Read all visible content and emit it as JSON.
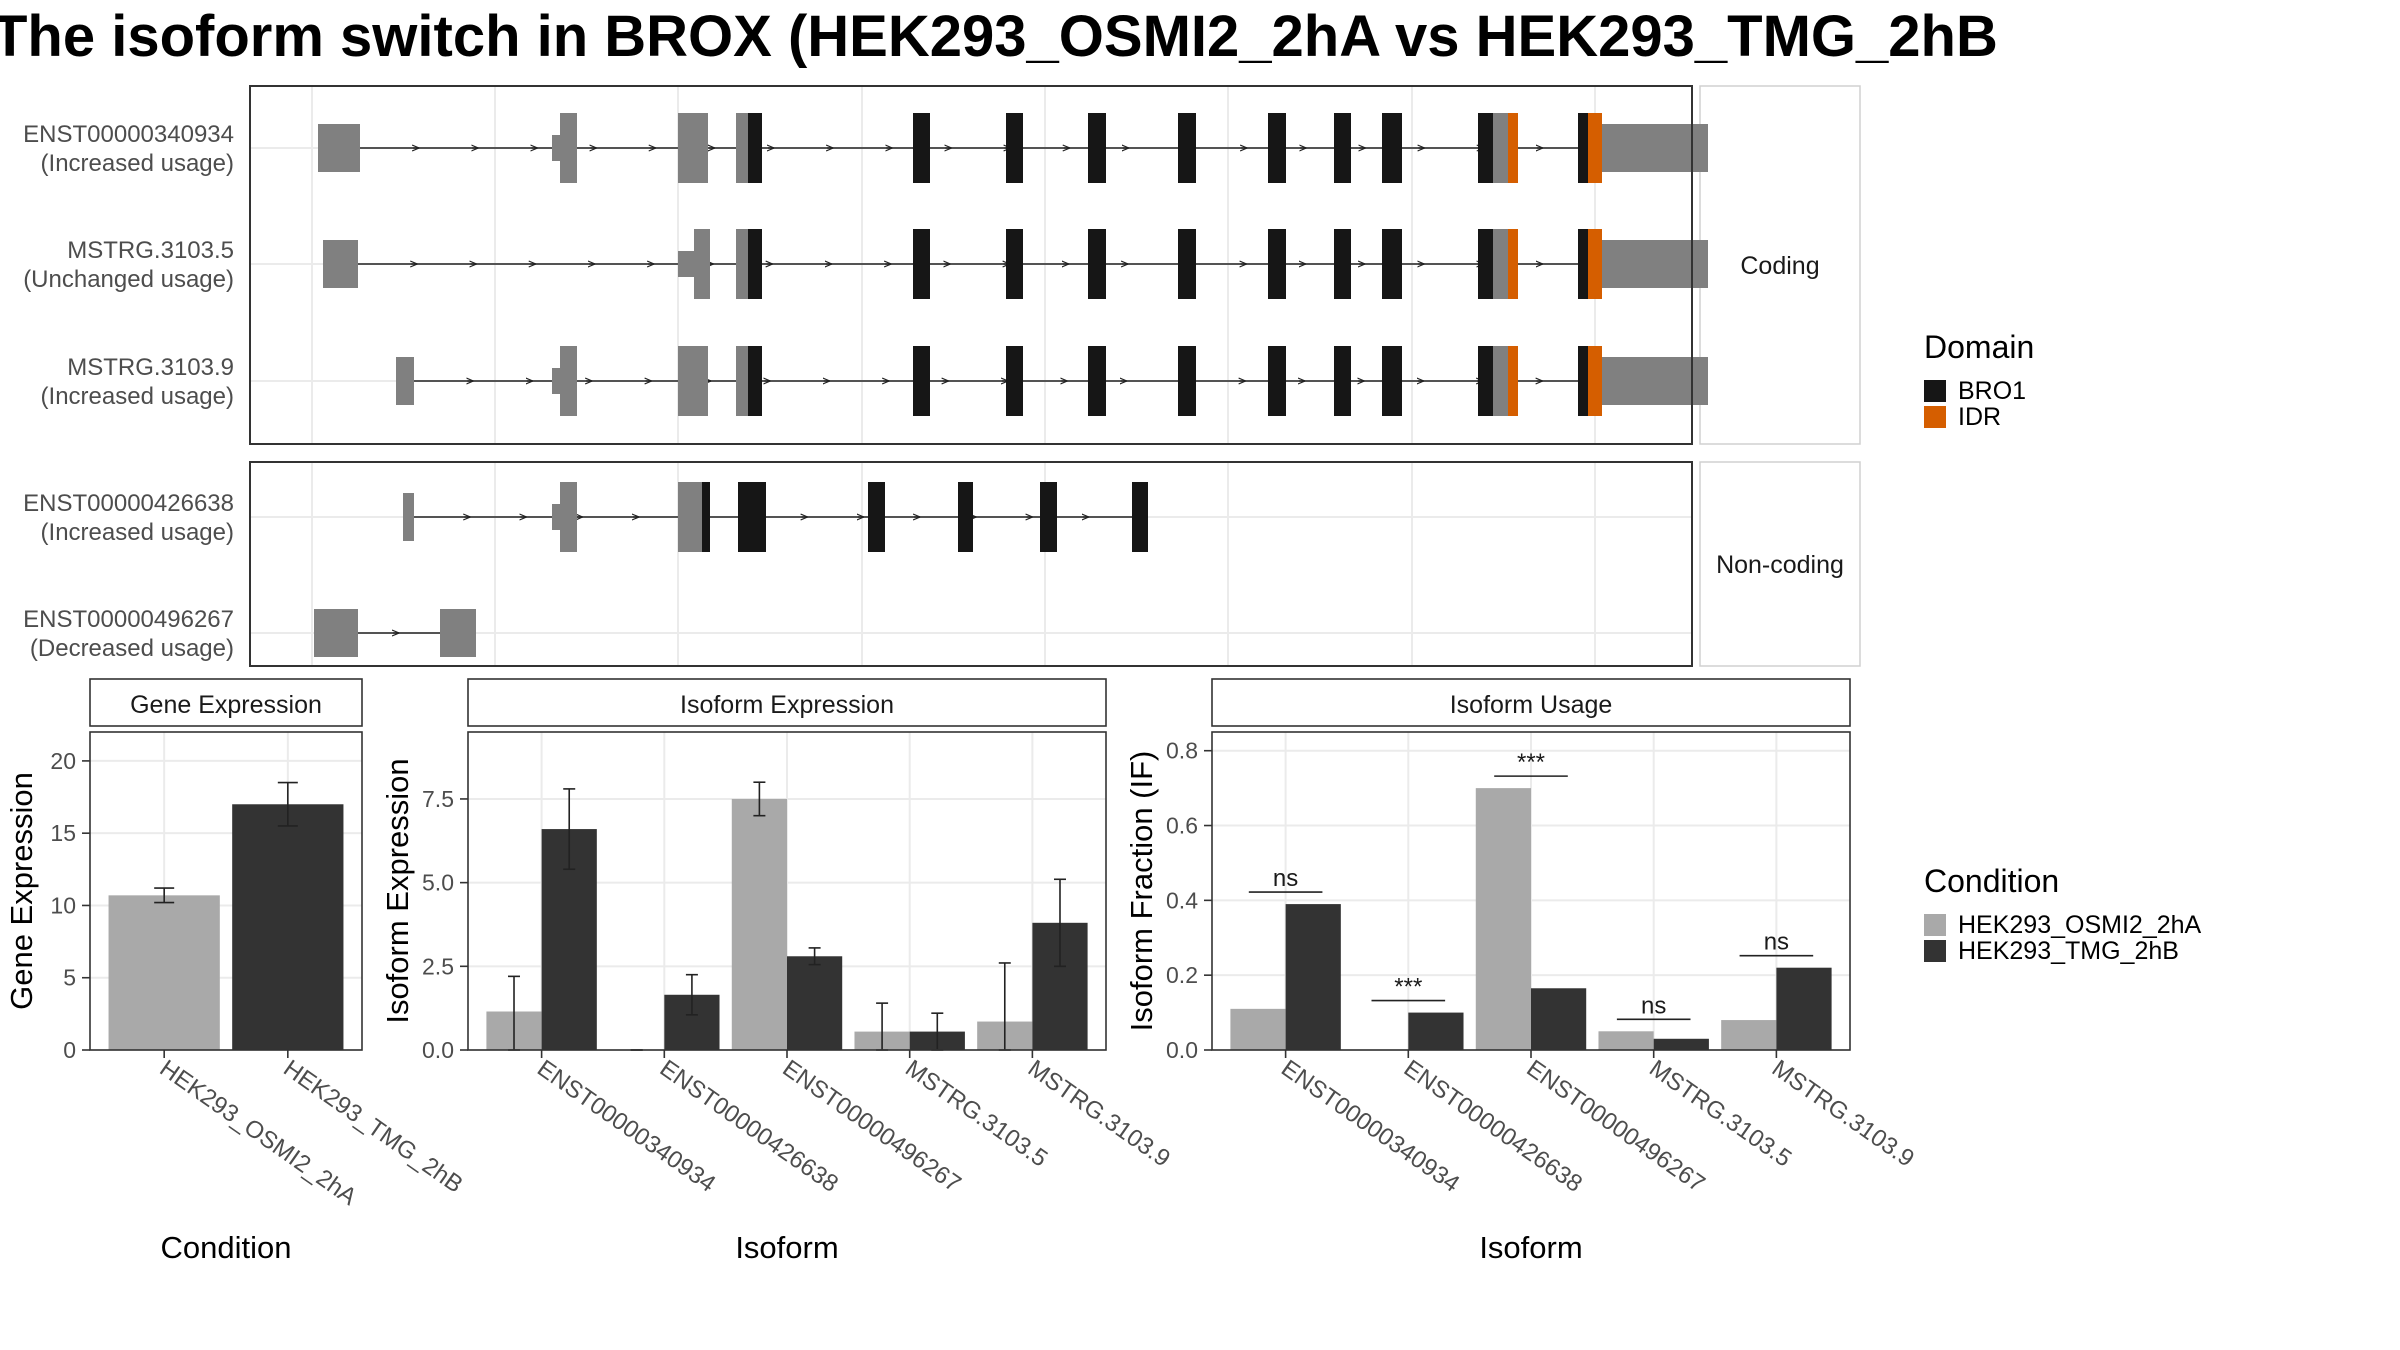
{
  "title": "The isoform switch in BROX (HEK293_OSMI2_2hA vs HEK293_TMG_2hB",
  "colors": {
    "exon": "#808080",
    "BRO1": "#161616",
    "IDR": "#D55E00",
    "cond1": "#A9A9A9",
    "cond2": "#333333",
    "grid": "#EBEBEB",
    "strip_bg": "#FFFFFF"
  },
  "transcript_panel": {
    "groups": [
      {
        "strip": "Coding",
        "transcripts": [
          {
            "name": "ENST00000340934",
            "usage": "(Increased usage)"
          },
          {
            "name": "MSTRG.3103.5",
            "usage": "(Unchanged usage)"
          },
          {
            "name": "MSTRG.3103.9",
            "usage": "(Increased usage)"
          }
        ]
      },
      {
        "strip": "Non-coding",
        "transcripts": [
          {
            "name": "ENST00000426638",
            "usage": "(Increased usage)"
          },
          {
            "name": "ENST00000496267",
            "usage": "(Decreased usage)"
          }
        ]
      }
    ],
    "domain_legend": {
      "title": "Domain",
      "items": [
        {
          "label": "BRO1",
          "color": "#161616"
        },
        {
          "label": "IDR",
          "color": "#D55E00"
        }
      ]
    }
  },
  "condition_legend": {
    "title": "Condition",
    "items": [
      {
        "label": "HEK293_OSMI2_2hA",
        "color": "#A9A9A9"
      },
      {
        "label": "HEK293_TMG_2hB",
        "color": "#333333"
      }
    ]
  },
  "chart_data": [
    {
      "type": "bar",
      "strip": "Gene Expression",
      "xlabel": "Condition",
      "ylabel": "Gene Expression",
      "categories": [
        "HEK293_OSMI2_2hA",
        "HEK293_TMG_2hB"
      ],
      "values": [
        10.7,
        17.0
      ],
      "error": [
        [
          10.2,
          11.2
        ],
        [
          15.5,
          18.5
        ]
      ],
      "ylim": [
        0,
        22
      ],
      "yticks": [
        "0",
        "5",
        "10",
        "15",
        "20"
      ]
    },
    {
      "type": "bar",
      "strip": "Isoform Expression",
      "xlabel": "Isoform",
      "ylabel": "Isoform Expression",
      "categories": [
        "ENST00000340934",
        "ENST00000426638",
        "ENST00000496267",
        "MSTRG.3103.5",
        "MSTRG.3103.9"
      ],
      "series": [
        {
          "name": "HEK293_OSMI2_2hA",
          "values": [
            1.15,
            0.0,
            7.5,
            0.55,
            0.85
          ],
          "error": [
            [
              0.0,
              2.2
            ],
            [
              0.0,
              0.0
            ],
            [
              7.0,
              8.0
            ],
            [
              0.0,
              1.4
            ],
            [
              0.0,
              2.6
            ]
          ]
        },
        {
          "name": "HEK293_TMG_2hB",
          "values": [
            6.6,
            1.65,
            2.8,
            0.55,
            3.8
          ],
          "error": [
            [
              5.4,
              7.8
            ],
            [
              1.05,
              2.25
            ],
            [
              2.55,
              3.05
            ],
            [
              0.0,
              1.1
            ],
            [
              2.5,
              5.1
            ]
          ]
        }
      ],
      "ylim": [
        0,
        9.5
      ],
      "yticks": [
        "0.0",
        "2.5",
        "5.0",
        "7.5"
      ]
    },
    {
      "type": "bar",
      "strip": "Isoform Usage",
      "xlabel": "Isoform",
      "ylabel": "Isoform Fraction (IF)",
      "categories": [
        "ENST00000340934",
        "ENST00000426638",
        "ENST00000496267",
        "MSTRG.3103.5",
        "MSTRG.3103.9"
      ],
      "series": [
        {
          "name": "HEK293_OSMI2_2hA",
          "values": [
            0.11,
            0.0,
            0.7,
            0.05,
            0.08
          ]
        },
        {
          "name": "HEK293_TMG_2hB",
          "values": [
            0.39,
            0.1,
            0.165,
            0.03,
            0.22
          ]
        }
      ],
      "significance": [
        "ns",
        "***",
        "***",
        "ns",
        "ns"
      ],
      "ylim": [
        0,
        0.85
      ],
      "yticks": [
        "0.0",
        "0.2",
        "0.4",
        "0.6",
        "0.8"
      ]
    }
  ]
}
